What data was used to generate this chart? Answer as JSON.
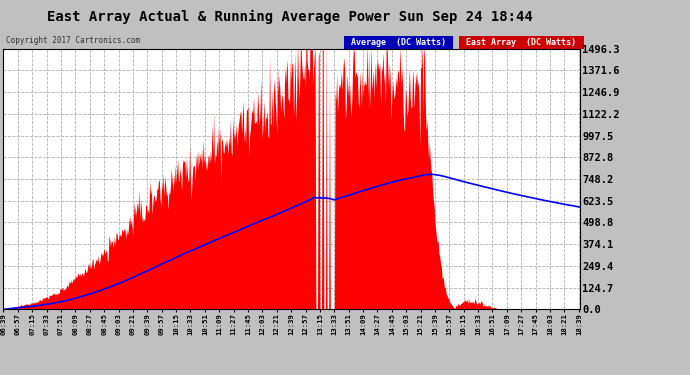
{
  "title": "East Array Actual & Running Average Power Sun Sep 24 18:44",
  "copyright": "Copyright 2017 Cartronics.com",
  "bg_color": "#c0c0c0",
  "plot_bg_color": "#ffffff",
  "bar_color": "#ff0000",
  "line_color": "#0000ff",
  "grid_color": "#b0b0b0",
  "yticks": [
    0.0,
    124.7,
    249.4,
    374.1,
    498.8,
    623.5,
    748.2,
    872.8,
    997.5,
    1122.2,
    1246.9,
    1371.6,
    1496.3
  ],
  "ymax": 1496.3,
  "legend_avg_bg": "#0000bb",
  "legend_arr_bg": "#cc0000",
  "legend_text_color": "#ffffff",
  "title_color": "#000000",
  "tick_interval_min": 18
}
